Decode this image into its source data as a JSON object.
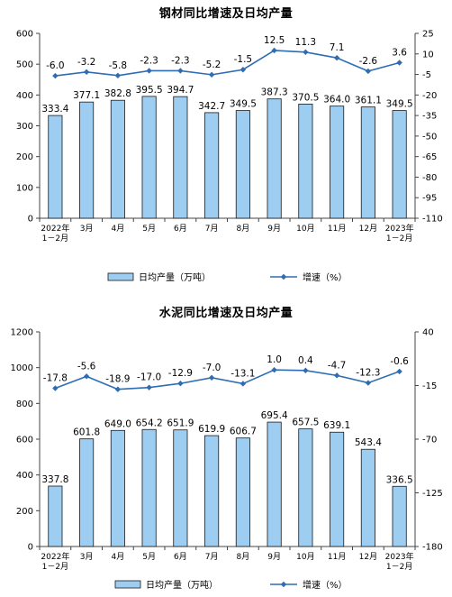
{
  "chart_data": [
    {
      "type": "bar",
      "title": "钢材同比增速及日均产量",
      "categories": [
        "2022年\n1－2月",
        "3月",
        "4月",
        "5月",
        "6月",
        "7月",
        "8月",
        "9月",
        "10月",
        "11月",
        "12月",
        "2023年\n1－2月"
      ],
      "series": [
        {
          "name": "日均产量（万吨）",
          "type": "bar",
          "axis": "left",
          "values": [
            333.4,
            377.1,
            382.8,
            395.5,
            394.7,
            342.7,
            349.5,
            387.3,
            370.5,
            364.0,
            361.1,
            349.5
          ],
          "labels": [
            "333.4",
            "377.1",
            "382.8",
            "395.5",
            "394.7",
            "342.7",
            "349.5",
            "387.3",
            "370.5",
            "364.0",
            "361.1",
            "349.5"
          ]
        },
        {
          "name": "增速（%）",
          "type": "line",
          "axis": "right",
          "values": [
            -6.0,
            -3.2,
            -5.8,
            -2.3,
            -2.3,
            -5.2,
            -1.5,
            12.5,
            11.3,
            7.1,
            -2.6,
            3.6
          ],
          "labels": [
            "-6.0",
            "-3.2",
            "-5.8",
            "-2.3",
            "-2.3",
            "-5.2",
            "-1.5",
            "12.5",
            "11.3",
            "7.1",
            "-2.6",
            "3.6"
          ]
        }
      ],
      "ylim_left": [
        0,
        600
      ],
      "yticks_left": [
        "0",
        "100",
        "200",
        "300",
        "400",
        "500",
        "600"
      ],
      "ylim_right": [
        -110,
        25
      ],
      "yticks_right": [
        "25",
        "10",
        "-5",
        "-20",
        "-35",
        "-50",
        "-65",
        "-80",
        "-95",
        "-110"
      ],
      "grid": false,
      "legend_position": "bottom"
    },
    {
      "type": "bar",
      "title": "水泥同比增速及日均产量",
      "categories": [
        "2022年\n1－2月",
        "3月",
        "4月",
        "5月",
        "6月",
        "7月",
        "8月",
        "9月",
        "10月",
        "11月",
        "12月",
        "2023年\n1－2月"
      ],
      "series": [
        {
          "name": "日均产量（万吨）",
          "type": "bar",
          "axis": "left",
          "values": [
            337.8,
            601.8,
            649.0,
            654.2,
            651.9,
            619.9,
            606.7,
            695.4,
            657.5,
            639.1,
            543.4,
            336.5
          ],
          "labels": [
            "337.8",
            "601.8",
            "649.0",
            "654.2",
            "651.9",
            "619.9",
            "606.7",
            "695.4",
            "657.5",
            "639.1",
            "543.4",
            "336.5"
          ]
        },
        {
          "name": "增速（%）",
          "type": "line",
          "axis": "right",
          "values": [
            -17.8,
            -5.6,
            -18.9,
            -17.0,
            -12.9,
            -7.0,
            -13.1,
            1.0,
            0.4,
            -4.7,
            -12.3,
            -0.6
          ],
          "labels": [
            "-17.8",
            "-5.6",
            "-18.9",
            "-17.0",
            "-12.9",
            "-7.0",
            "-13.1",
            "1.0",
            "0.4",
            "-4.7",
            "-12.3",
            "-0.6"
          ]
        }
      ],
      "ylim_left": [
        0,
        1200
      ],
      "yticks_left": [
        "0",
        "200",
        "400",
        "600",
        "800",
        "1000",
        "1200"
      ],
      "ylim_right": [
        -180,
        40
      ],
      "yticks_right": [
        "40",
        "-15",
        "-70",
        "-125",
        "-180"
      ],
      "grid": false,
      "legend_position": "bottom"
    }
  ],
  "colors": {
    "bar_fill": "#9dcdf0",
    "bar_stroke": "#1a1a1a",
    "line": "#2e6db4",
    "axis": "#444444"
  }
}
